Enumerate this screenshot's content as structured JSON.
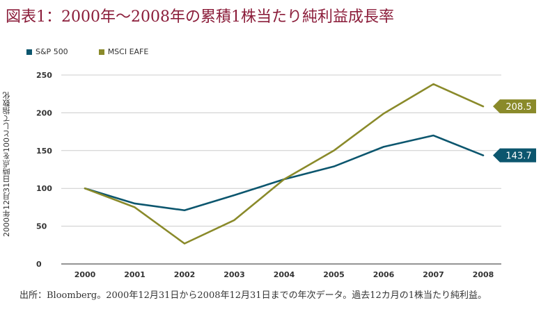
{
  "title": "図表1：2000年〜2008年の累積1株当たり純利益成長率",
  "footnote": "出所：Bloomberg。2000年12月31日から2008年12月31日までの年次データ。過去12カ月の1株当たり純利益。",
  "colors": {
    "sp500": "#0c566e",
    "msci_eafe": "#8a8a2a",
    "title": "#8b1d3a",
    "axis": "#333333"
  },
  "chart_data": {
    "type": "line",
    "title": "図表1：2000年〜2008年の累積1株当たり純利益成長率",
    "xlabel": "",
    "ylabel": "2000年12月31日時点を100として指数化",
    "categories": [
      "2000",
      "2001",
      "2002",
      "2003",
      "2004",
      "2005",
      "2006",
      "2007",
      "2008"
    ],
    "ylim": [
      0,
      250
    ],
    "yticks": [
      "0",
      "50",
      "100",
      "150",
      "200",
      "250"
    ],
    "grid": "horizontal",
    "legend_position": "top-left",
    "series": [
      {
        "name": "S&P 500",
        "values": [
          100,
          80,
          71,
          91,
          112,
          129,
          155,
          170,
          143.7
        ],
        "end_label": "143.7"
      },
      {
        "name": "MSCI EAFE",
        "values": [
          100,
          75,
          27,
          58,
          112,
          150,
          199,
          238,
          208.5
        ],
        "end_label": "208.5"
      }
    ]
  }
}
